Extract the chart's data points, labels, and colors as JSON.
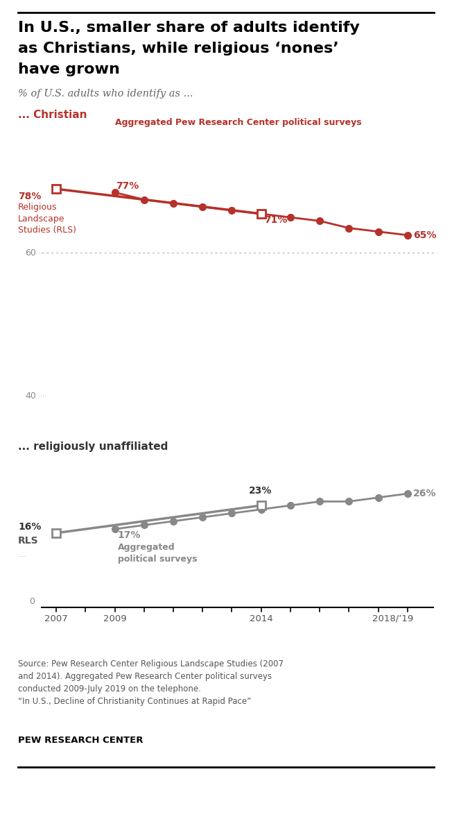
{
  "title_line1": "In U.S., smaller share of adults identify",
  "title_line2": "as Christians, while religious ‘nones’",
  "title_line3": "have grown",
  "subtitle": "% of U.S. adults who identify as ...",
  "christian_label": "... Christian",
  "unaffiliated_label": "... religiously unaffiliated",
  "christian_color": "#b5312a",
  "unaffiliated_color": "#888888",
  "rls_christian_year": 2007,
  "rls_christian_value": 78,
  "rls_christian_2014_year": 2014,
  "rls_christian_2014_value": 71,
  "rls_unaffiliated_year": 2007,
  "rls_unaffiliated_value": 16,
  "rls_unaffiliated_2014_year": 2014,
  "rls_unaffiliated_2014_value": 23,
  "agg_christian_years": [
    2009,
    2010,
    2011,
    2012,
    2013,
    2014,
    2015,
    2016,
    2017,
    2018,
    2019
  ],
  "agg_christian_values": [
    77,
    75,
    74,
    73,
    72,
    71,
    70,
    69,
    67,
    66,
    65
  ],
  "agg_unaffiliated_years": [
    2009,
    2010,
    2011,
    2012,
    2013,
    2014,
    2015,
    2016,
    2017,
    2018,
    2019
  ],
  "agg_unaffiliated_values": [
    17,
    18,
    19,
    20,
    21,
    22,
    23,
    24,
    24,
    25,
    26
  ],
  "source_text": "Source: Pew Research Center Religious Landscape Studies (2007\nand 2014). Aggregated Pew Research Center political surveys\nconducted 2009-July 2019 on the telephone.\n“In U.S., Decline of Christianity Continues at Rapid Pace”",
  "pew_label": "PEW RESEARCH CENTER",
  "bg_color": "#ffffff",
  "ref_line_color": "#bbbbbb",
  "axis_color": "#888888",
  "text_color_dark": "#222222",
  "text_color_mid": "#555555",
  "agg_label_christian": "Aggregated Pew Research Center political surveys",
  "agg_label_unaffiliated": "Aggregated\npolitical surveys",
  "rls_label_christian": "78%\nReligious\nLandscape\nStudies (RLS)",
  "rls_label_unaffiliated": "16%\nRLS"
}
